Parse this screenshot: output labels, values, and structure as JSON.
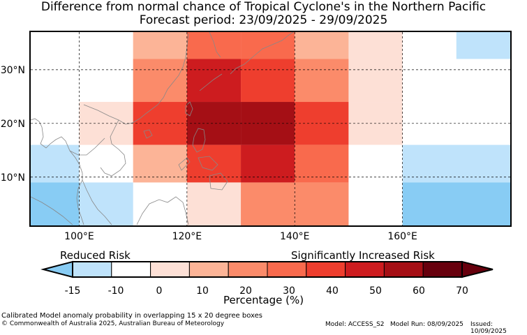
{
  "title": {
    "line1": "Difference from normal chance of Tropical Cyclone's in the Northern Pacific",
    "line2": "Forecast period: 23/09/2025 - 29/09/2025"
  },
  "map": {
    "lat_labels": [
      "30°N",
      "20°N",
      "10°N"
    ],
    "lon_labels": [
      "100°E",
      "120°E",
      "140°E",
      "160°E"
    ],
    "grid_lats": [
      30,
      20,
      10
    ],
    "grid_lons": [
      100,
      120,
      140,
      160
    ],
    "lon_range": [
      91,
      180
    ],
    "lat_range": [
      1,
      37
    ],
    "cells": [
      {
        "lon": [
          110,
          120
        ],
        "lat": [
          32,
          37
        ],
        "bin": 3
      },
      {
        "lon": [
          120,
          130
        ],
        "lat": [
          32,
          37
        ],
        "bin": 5
      },
      {
        "lon": [
          130,
          140
        ],
        "lat": [
          32,
          37
        ],
        "bin": 5
      },
      {
        "lon": [
          140,
          150
        ],
        "lat": [
          32,
          37
        ],
        "bin": 3
      },
      {
        "lon": [
          150,
          160
        ],
        "lat": [
          32,
          37
        ],
        "bin": 2
      },
      {
        "lon": [
          170,
          180
        ],
        "lat": [
          32,
          37
        ],
        "bin": 0
      },
      {
        "lon": [
          100,
          110
        ],
        "lat": [
          24,
          32
        ],
        "bin": 1
      },
      {
        "lon": [
          110,
          120
        ],
        "lat": [
          24,
          32
        ],
        "bin": 4
      },
      {
        "lon": [
          120,
          130
        ],
        "lat": [
          24,
          32
        ],
        "bin": 7
      },
      {
        "lon": [
          130,
          140
        ],
        "lat": [
          24,
          32
        ],
        "bin": 6
      },
      {
        "lon": [
          140,
          150
        ],
        "lat": [
          24,
          32
        ],
        "bin": 4
      },
      {
        "lon": [
          150,
          160
        ],
        "lat": [
          24,
          32
        ],
        "bin": 2
      },
      {
        "lon": [
          100,
          110
        ],
        "lat": [
          16,
          24
        ],
        "bin": 2
      },
      {
        "lon": [
          110,
          120
        ],
        "lat": [
          16,
          24
        ],
        "bin": 6
      },
      {
        "lon": [
          120,
          130
        ],
        "lat": [
          16,
          24
        ],
        "bin": 8
      },
      {
        "lon": [
          130,
          140
        ],
        "lat": [
          16,
          24
        ],
        "bin": 8
      },
      {
        "lon": [
          140,
          150
        ],
        "lat": [
          16,
          24
        ],
        "bin": 6
      },
      {
        "lon": [
          150,
          160
        ],
        "lat": [
          16,
          24
        ],
        "bin": 2
      },
      {
        "lon": [
          91,
          100
        ],
        "lat": [
          9,
          16
        ],
        "bin": 0
      },
      {
        "lon": [
          110,
          120
        ],
        "lat": [
          9,
          16
        ],
        "bin": 3
      },
      {
        "lon": [
          120,
          130
        ],
        "lat": [
          9,
          16
        ],
        "bin": 6
      },
      {
        "lon": [
          130,
          140
        ],
        "lat": [
          9,
          16
        ],
        "bin": 7
      },
      {
        "lon": [
          140,
          150
        ],
        "lat": [
          9,
          16
        ],
        "bin": 5
      },
      {
        "lon": [
          150,
          160
        ],
        "lat": [
          9,
          16
        ],
        "bin": 1
      },
      {
        "lon": [
          160,
          180
        ],
        "lat": [
          9,
          16
        ],
        "bin": 0
      },
      {
        "lon": [
          91,
          100
        ],
        "lat": [
          1,
          9
        ],
        "bin": -1
      },
      {
        "lon": [
          100,
          110
        ],
        "lat": [
          1,
          9
        ],
        "bin": 0
      },
      {
        "lon": [
          120,
          130
        ],
        "lat": [
          1,
          9
        ],
        "bin": 2
      },
      {
        "lon": [
          130,
          140
        ],
        "lat": [
          1,
          9
        ],
        "bin": 4
      },
      {
        "lon": [
          140,
          150
        ],
        "lat": [
          1,
          9
        ],
        "bin": 4
      },
      {
        "lon": [
          160,
          180
        ],
        "lat": [
          1,
          9
        ],
        "bin": -1
      }
    ]
  },
  "colorbar": {
    "ticks": [
      "-15",
      "-10",
      "0",
      "10",
      "20",
      "30",
      "40",
      "50",
      "60",
      "70"
    ],
    "colors": [
      "#bfe3fb",
      "#ffffff",
      "#fde0d6",
      "#fcb497",
      "#fb8b6a",
      "#f96a4d",
      "#ee3e2e",
      "#cd1c1f",
      "#a50f15",
      "#67000d"
    ],
    "under_color": "#88ccf4",
    "over_color": "#67000d",
    "label": "Percentage (%)",
    "left_label": "Reduced Risk",
    "right_label": "Significantly Increased Risk"
  },
  "footer": {
    "note": "Calibrated Model anomaly probability in overlapping 15 x 20 degree boxes",
    "copyright": "© Commonwealth of Australia 2025, Australian Bureau of Meteorology",
    "model": "Model: ACCESS_S2",
    "model_run": "Model Run: 08/09/2025",
    "issued": "Issued: 10/09/2025"
  }
}
